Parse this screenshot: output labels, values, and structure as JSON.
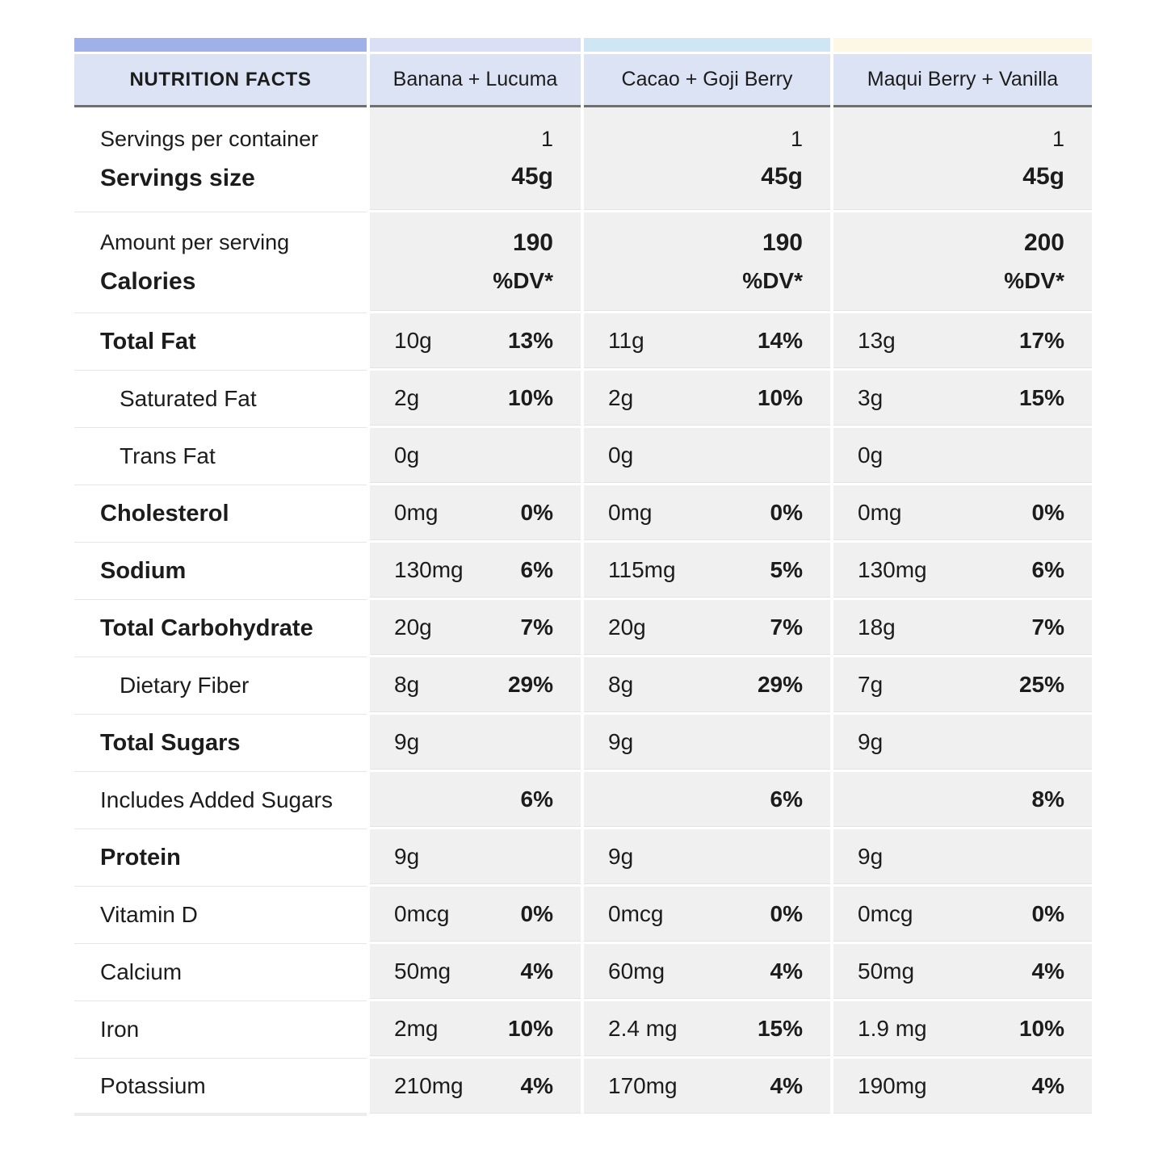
{
  "colors": {
    "bar_label": "#a0b0e8",
    "bar_product_1": "#d9e0f6",
    "bar_product_2": "#cfe6f4",
    "bar_product_3": "#fdf8e6",
    "header_bg": "#dce3f5",
    "header_rule": "#6f6f6f",
    "data_cell_bg": "#f0f0f0"
  },
  "header": {
    "label": "NUTRITION FACTS",
    "products": [
      "Banana + Lucuma",
      "Cacao + Goji Berry",
      "Maqui Berry + Vanilla"
    ]
  },
  "servings": {
    "label_line1": "Servings per container",
    "label_line2": "Servings size",
    "values": [
      {
        "count": "1",
        "size": "45g"
      },
      {
        "count": "1",
        "size": "45g"
      },
      {
        "count": "1",
        "size": "45g"
      }
    ]
  },
  "calories": {
    "label_line1": "Amount per serving",
    "label_line2": "Calories",
    "values": [
      {
        "amount": "190",
        "dv_label": "%DV*"
      },
      {
        "amount": "190",
        "dv_label": "%DV*"
      },
      {
        "amount": "200",
        "dv_label": "%DV*"
      }
    ]
  },
  "rows": [
    {
      "label": "Total Fat",
      "cells": [
        {
          "amount": "10g",
          "dv": "13%"
        },
        {
          "amount": "11g",
          "dv": "14%"
        },
        {
          "amount": "13g",
          "dv": "17%"
        }
      ]
    },
    {
      "label": "Saturated Fat",
      "cells": [
        {
          "amount": "2g",
          "dv": "10%"
        },
        {
          "amount": "2g",
          "dv": "10%"
        },
        {
          "amount": "3g",
          "dv": "15%"
        }
      ]
    },
    {
      "label": "Trans Fat",
      "cells": [
        {
          "amount": "0g"
        },
        {
          "amount": "0g"
        },
        {
          "amount": "0g"
        }
      ]
    },
    {
      "label": "Cholesterol",
      "cells": [
        {
          "amount": "0mg",
          "dv": "0%"
        },
        {
          "amount": "0mg",
          "dv": "0%"
        },
        {
          "amount": "0mg",
          "dv": "0%"
        }
      ]
    },
    {
      "label": "Sodium",
      "cells": [
        {
          "amount": "130mg",
          "dv": "6%"
        },
        {
          "amount": "115mg",
          "dv": "5%"
        },
        {
          "amount": "130mg",
          "dv": "6%"
        }
      ]
    },
    {
      "label": "Total Carbohydrate",
      "cells": [
        {
          "amount": "20g",
          "dv": "7%"
        },
        {
          "amount": "20g",
          "dv": "7%"
        },
        {
          "amount": "18g",
          "dv": "7%"
        }
      ]
    },
    {
      "label": "Dietary Fiber",
      "cells": [
        {
          "amount": "8g",
          "dv": "29%"
        },
        {
          "amount": "8g",
          "dv": "29%"
        },
        {
          "amount": "7g",
          "dv": "25%"
        }
      ]
    },
    {
      "label": "Total Sugars",
      "cells": [
        {
          "amount": "9g"
        },
        {
          "amount": "9g"
        },
        {
          "amount": "9g"
        }
      ]
    },
    {
      "label": "Includes Added Sugars",
      "cells": [
        {
          "dv": "6%"
        },
        {
          "dv": "6%"
        },
        {
          "dv": "8%"
        }
      ]
    },
    {
      "label": "Protein",
      "cells": [
        {
          "amount": "9g"
        },
        {
          "amount": "9g"
        },
        {
          "amount": "9g"
        }
      ]
    },
    {
      "label": "Vitamin D",
      "cells": [
        {
          "amount": "0mcg",
          "dv": "0%"
        },
        {
          "amount": "0mcg",
          "dv": "0%"
        },
        {
          "amount": "0mcg",
          "dv": "0%"
        }
      ]
    },
    {
      "label": "Calcium",
      "cells": [
        {
          "amount": "50mg",
          "dv": "4%"
        },
        {
          "amount": "60mg",
          "dv": "4%"
        },
        {
          "amount": "50mg",
          "dv": "4%"
        }
      ]
    },
    {
      "label": "Iron",
      "cells": [
        {
          "amount": "2mg",
          "dv": "10%"
        },
        {
          "amount": "2.4 mg",
          "dv": "15%"
        },
        {
          "amount": "1.9 mg",
          "dv": "10%"
        }
      ]
    },
    {
      "label": "Potassium",
      "cells": [
        {
          "amount": "210mg",
          "dv": "4%"
        },
        {
          "amount": "170mg",
          "dv": "4%"
        },
        {
          "amount": "190mg",
          "dv": "4%"
        }
      ]
    }
  ]
}
